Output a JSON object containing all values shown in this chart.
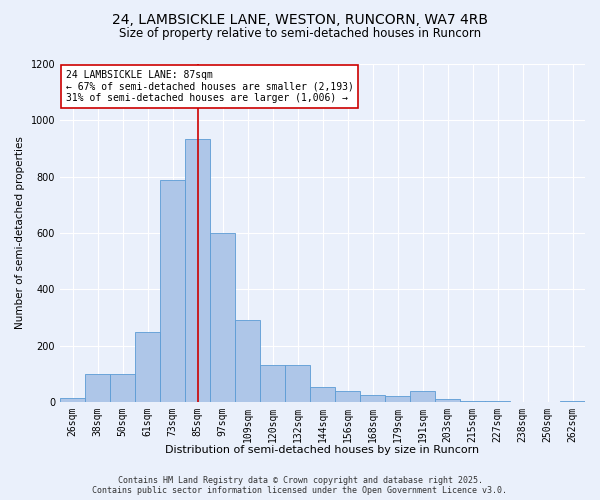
{
  "title_line1": "24, LAMBSICKLE LANE, WESTON, RUNCORN, WA7 4RB",
  "title_line2": "Size of property relative to semi-detached houses in Runcorn",
  "xlabel": "Distribution of semi-detached houses by size in Runcorn",
  "ylabel": "Number of semi-detached properties",
  "categories": [
    "26sqm",
    "38sqm",
    "50sqm",
    "61sqm",
    "73sqm",
    "85sqm",
    "97sqm",
    "109sqm",
    "120sqm",
    "132sqm",
    "144sqm",
    "156sqm",
    "168sqm",
    "179sqm",
    "191sqm",
    "203sqm",
    "215sqm",
    "227sqm",
    "238sqm",
    "250sqm",
    "262sqm"
  ],
  "values": [
    15,
    100,
    100,
    250,
    790,
    935,
    600,
    290,
    130,
    130,
    55,
    40,
    25,
    20,
    40,
    10,
    5,
    3,
    2,
    1,
    5
  ],
  "bar_color": "#aec6e8",
  "bar_edge_color": "#5b9bd5",
  "vline_index": 5.0,
  "annotation_text": "24 LAMBSICKLE LANE: 87sqm\n← 67% of semi-detached houses are smaller (2,193)\n31% of semi-detached houses are larger (1,006) →",
  "annotation_box_facecolor": "#ffffff",
  "annotation_box_edgecolor": "#cc0000",
  "vline_color": "#cc0000",
  "ylim": [
    0,
    1200
  ],
  "yticks": [
    0,
    200,
    400,
    600,
    800,
    1000,
    1200
  ],
  "footer_line1": "Contains HM Land Registry data © Crown copyright and database right 2025.",
  "footer_line2": "Contains public sector information licensed under the Open Government Licence v3.0.",
  "background_color": "#eaf0fb",
  "plot_background_color": "#eaf0fb",
  "grid_color": "#ffffff",
  "title_fontsize": 10,
  "subtitle_fontsize": 8.5,
  "tick_fontsize": 7,
  "ylabel_fontsize": 7.5,
  "xlabel_fontsize": 8,
  "annotation_fontsize": 7,
  "footer_fontsize": 6
}
